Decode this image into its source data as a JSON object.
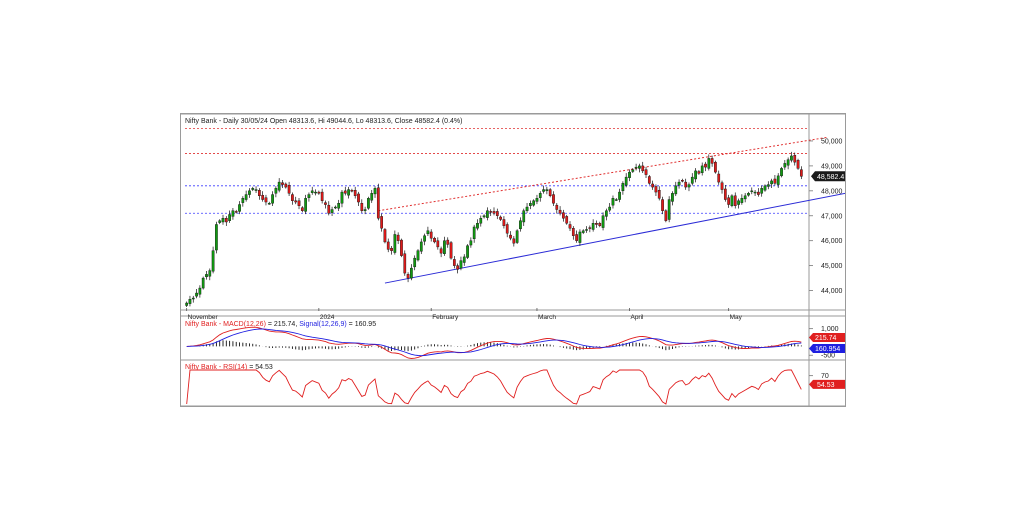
{
  "chart_data": [
    {
      "type": "candlestick",
      "panel": "price",
      "title": "Nifty Bank - Daily 30/05/24 Open 48313.6, Hi 49044.6, Lo 48313.6, Close 48582.4 (0.4%)",
      "last_value_label": "48,582.4",
      "y_ticks": [
        {
          "value": 44000,
          "label": "44,000"
        },
        {
          "value": 45000,
          "label": "45,000"
        },
        {
          "value": 46000,
          "label": "46,000"
        },
        {
          "value": 47000,
          "label": "47,000"
        },
        {
          "value": 48000,
          "label": "48,000"
        },
        {
          "value": 49000,
          "label": "49,000"
        },
        {
          "value": 50000,
          "label": "50,000"
        }
      ],
      "ylim": [
        43300,
        50600
      ],
      "x_labels": [
        {
          "i": 0,
          "label": "November"
        },
        {
          "i": 40,
          "label": "2024"
        },
        {
          "i": 74,
          "label": "February"
        },
        {
          "i": 106,
          "label": "March"
        },
        {
          "i": 134,
          "label": "April"
        },
        {
          "i": 164,
          "label": "May"
        }
      ],
      "horizontal_levels": [
        {
          "value": 50500,
          "style": "dotted",
          "color": "#e03030"
        },
        {
          "value": 49500,
          "style": "dotted",
          "color": "#e03030"
        },
        {
          "value": 48200,
          "style": "dotted",
          "color": "#3a3aff"
        },
        {
          "value": 47100,
          "style": "dotted",
          "color": "#3a3aff"
        }
      ],
      "trendlines": [
        {
          "from": {
            "i": 60,
            "v": 44300
          },
          "to": {
            "i": 207,
            "v": 48100
          },
          "style": "solid",
          "color": "#2b2bd6"
        },
        {
          "from": {
            "i": 58,
            "v": 47200
          },
          "to": {
            "i": 194,
            "v": 50150
          },
          "style": "dotted",
          "color": "#e03030"
        }
      ],
      "closes": [
        43500,
        43650,
        43700,
        43900,
        44100,
        44500,
        44650,
        44800,
        45600,
        46650,
        46800,
        46900,
        46750,
        47050,
        47200,
        47150,
        47450,
        47700,
        47850,
        48000,
        48100,
        48050,
        47800,
        47650,
        47550,
        47500,
        47850,
        48100,
        48350,
        48250,
        48150,
        47900,
        47600,
        47550,
        47400,
        47200,
        47700,
        47850,
        48000,
        47950,
        47900,
        47600,
        47450,
        47100,
        47250,
        47350,
        47500,
        47950,
        47900,
        48050,
        48000,
        47800,
        47550,
        47200,
        47250,
        47700,
        47900,
        48100,
        46900,
        46500,
        45950,
        45650,
        45600,
        46250,
        46000,
        45400,
        44700,
        44500,
        44900,
        45300,
        45600,
        45950,
        46200,
        46400,
        46100,
        45950,
        45750,
        45500,
        46000,
        45850,
        45300,
        45000,
        44850,
        45200,
        45350,
        45800,
        46000,
        46550,
        46700,
        46900,
        47000,
        47200,
        47150,
        47100,
        47000,
        46850,
        46600,
        46300,
        46100,
        45900,
        46400,
        46800,
        47200,
        47350,
        47500,
        47600,
        47700,
        47900,
        48050,
        48050,
        47800,
        47500,
        47250,
        47100,
        46900,
        46700,
        46500,
        46200,
        46000,
        46350,
        46400,
        46450,
        46500,
        46700,
        46650,
        46600,
        47000,
        47200,
        47350,
        47700,
        47650,
        47950,
        48300,
        48550,
        48750,
        48850,
        48950,
        49000,
        48800,
        48650,
        48300,
        48150,
        47950,
        47700,
        47200,
        46800,
        47650,
        47900,
        48200,
        48350,
        48400,
        48150,
        48250,
        48550,
        48800,
        48700,
        49000,
        48950,
        49300,
        49100,
        48750,
        48350,
        48050,
        47650,
        47450,
        47800,
        47400,
        47600,
        47700,
        47800,
        47900,
        48000,
        47950,
        47850,
        48100,
        48200,
        48250,
        48400,
        48300,
        48600,
        48900,
        49100,
        49250,
        49400,
        49150,
        48900,
        48582
      ]
    },
    {
      "type": "line",
      "panel": "macd",
      "title": "Nifty Bank - MACD(12,26) = 215.74, Signal(12,26,9) = 160.95",
      "label_macd": "Nifty Bank - MACD(12,26)",
      "value_macd": "215.74",
      "label_signal": "Signal(12,26,9)",
      "value_signal": "160.95",
      "y_ticks": [
        {
          "value": 1000,
          "label": "1,000"
        },
        {
          "value": 500,
          "label": "500"
        },
        {
          "value": -500,
          "label": "-500"
        }
      ],
      "ylim": [
        -600,
        1150
      ],
      "value_tags": [
        {
          "label": "215.74",
          "color": "#e01f1f",
          "value": 215.74
        },
        {
          "label": "160.954",
          "color": "#1f1fe0",
          "value": 160.95
        }
      ],
      "series": [
        {
          "name": "MACD(12,26)",
          "color": "#e01f1f"
        },
        {
          "name": "Signal(12,26,9)",
          "color": "#1f1fe0"
        }
      ]
    },
    {
      "type": "line",
      "panel": "rsi",
      "title": "Nifty Bank - RSI(14) = 54.53",
      "label_rsi": "Nifty Bank - RSI(14)",
      "value_rsi": "54.53",
      "y_ticks": [
        {
          "value": 70,
          "label": "70"
        }
      ],
      "ylim": [
        20,
        80
      ],
      "value_tag": {
        "label": "54.53",
        "color": "#e01f1f",
        "value": 54.53
      },
      "series": [
        {
          "name": "RSI(14)",
          "color": "#e01f1f"
        }
      ]
    }
  ],
  "colors": {
    "up_candle": "#119911",
    "down_candle": "#dd1a1a",
    "last_price_tag": "#1a1a1a",
    "frame": "#9a9a9a"
  }
}
